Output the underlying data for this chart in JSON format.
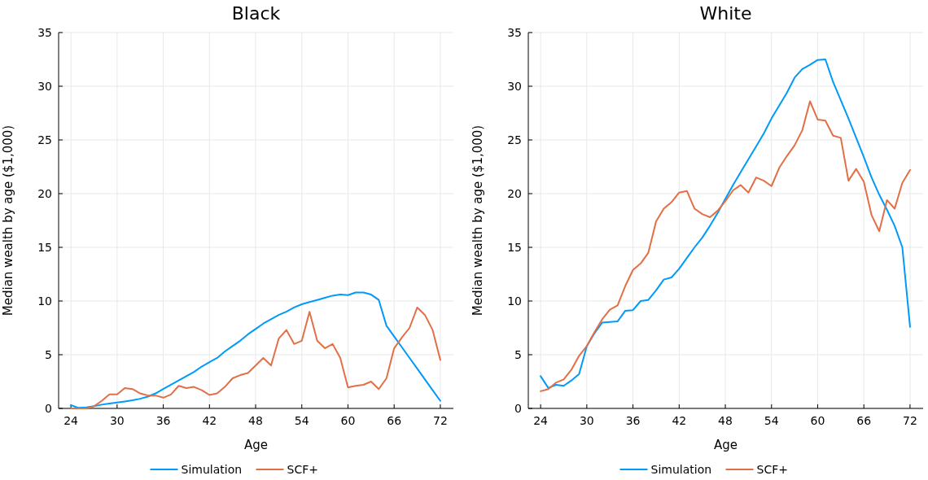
{
  "chart_data": [
    {
      "type": "line",
      "title": "Black",
      "xlabel": "Age",
      "ylabel": "Median wealth by age ($1,000)",
      "xlim": [
        22.4,
        73.7
      ],
      "ylim": [
        0,
        35
      ],
      "xticks": [
        24,
        30,
        36,
        42,
        48,
        54,
        60,
        66,
        72
      ],
      "yticks": [
        0,
        5,
        10,
        15,
        20,
        25,
        30,
        35
      ],
      "grid": true,
      "legend": "bottom",
      "x": [
        24,
        25,
        26,
        27,
        28,
        29,
        30,
        31,
        32,
        33,
        34,
        35,
        36,
        37,
        38,
        39,
        40,
        41,
        42,
        43,
        44,
        45,
        46,
        47,
        48,
        49,
        50,
        51,
        52,
        53,
        54,
        55,
        56,
        57,
        58,
        59,
        60,
        61,
        62,
        63,
        64,
        65,
        66,
        67,
        68,
        69,
        70,
        71,
        72
      ],
      "series": [
        {
          "name": "Simulation",
          "color": "#009af9",
          "values": [
            0.3,
            0.05,
            0.1,
            0.2,
            0.35,
            0.45,
            0.55,
            0.65,
            0.75,
            0.9,
            1.1,
            1.4,
            1.8,
            2.2,
            2.6,
            3.0,
            3.4,
            3.9,
            4.3,
            4.7,
            5.3,
            5.8,
            6.3,
            6.9,
            7.4,
            7.9,
            8.3,
            8.7,
            9.0,
            9.4,
            9.7,
            9.9,
            10.1,
            10.3,
            10.5,
            10.6,
            10.55,
            10.8,
            10.8,
            10.6,
            10.1,
            7.7,
            6.7,
            5.7,
            4.7,
            3.7,
            2.7,
            1.7,
            0.7
          ]
        },
        {
          "name": "SCF+",
          "color": "#e26f46",
          "values": [
            0.0,
            0.0,
            0.0,
            0.2,
            0.7,
            1.3,
            1.3,
            1.9,
            1.8,
            1.4,
            1.2,
            1.2,
            1.0,
            1.3,
            2.1,
            1.9,
            2.0,
            1.7,
            1.25,
            1.4,
            2.0,
            2.8,
            3.1,
            3.3,
            4.0,
            4.7,
            4.0,
            6.5,
            7.3,
            6.0,
            6.3,
            9.0,
            6.3,
            5.6,
            6.0,
            4.7,
            1.95,
            2.1,
            2.2,
            2.5,
            1.8,
            2.8,
            5.6,
            6.6,
            7.5,
            9.4,
            8.7,
            7.3,
            4.5
          ]
        }
      ]
    },
    {
      "type": "line",
      "title": "White",
      "xlabel": "Age",
      "ylabel": "Median wealth by age ($1,000)",
      "xlim": [
        22.4,
        73.7
      ],
      "ylim": [
        0,
        35
      ],
      "xticks": [
        24,
        30,
        36,
        42,
        48,
        54,
        60,
        66,
        72
      ],
      "yticks": [
        0,
        5,
        10,
        15,
        20,
        25,
        30,
        35
      ],
      "grid": true,
      "legend": "bottom",
      "x": [
        24,
        25,
        26,
        27,
        28,
        29,
        30,
        31,
        32,
        33,
        34,
        35,
        36,
        37,
        38,
        39,
        40,
        41,
        42,
        43,
        44,
        45,
        46,
        47,
        48,
        49,
        50,
        51,
        52,
        53,
        54,
        55,
        56,
        57,
        58,
        59,
        60,
        61,
        62,
        63,
        64,
        65,
        66,
        67,
        68,
        69,
        70,
        71,
        72
      ],
      "series": [
        {
          "name": "Simulation",
          "color": "#009af9",
          "values": [
            3.0,
            1.9,
            2.2,
            2.1,
            2.6,
            3.2,
            5.8,
            7.0,
            8.0,
            8.05,
            8.1,
            9.1,
            9.15,
            10.0,
            10.1,
            11.0,
            12.0,
            12.2,
            13.0,
            14.0,
            15.0,
            15.9,
            17.0,
            18.2,
            19.5,
            20.8,
            22.0,
            23.2,
            24.4,
            25.6,
            27.0,
            28.2,
            29.4,
            30.8,
            31.6,
            32.0,
            32.45,
            32.5,
            30.4,
            28.7,
            27.0,
            25.2,
            23.4,
            21.5,
            19.9,
            18.5,
            17.0,
            15.0,
            7.6
          ]
        },
        {
          "name": "SCF+",
          "color": "#e26f46",
          "values": [
            1.6,
            1.8,
            2.4,
            2.7,
            3.6,
            4.9,
            5.8,
            7.1,
            8.3,
            9.2,
            9.6,
            11.4,
            12.9,
            13.5,
            14.5,
            17.4,
            18.6,
            19.2,
            20.1,
            20.25,
            18.6,
            18.1,
            17.8,
            18.4,
            19.3,
            20.3,
            20.8,
            20.1,
            21.5,
            21.2,
            20.7,
            22.4,
            23.5,
            24.5,
            25.9,
            28.6,
            26.9,
            26.8,
            25.4,
            25.2,
            21.2,
            22.3,
            21.1,
            18.0,
            16.5,
            19.4,
            18.6,
            21.0,
            22.2
          ]
        }
      ]
    }
  ]
}
